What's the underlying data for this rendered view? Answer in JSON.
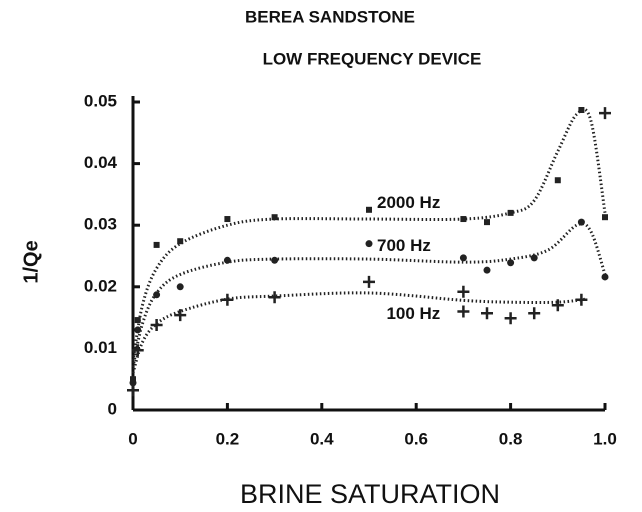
{
  "chart_data": {
    "type": "scatter",
    "title": "BEREA SANDSTONE",
    "subtitle": "LOW FREQUENCY DEVICE",
    "xlabel": "BRINE SATURATION",
    "ylabel": "1/Qe",
    "xlim": [
      0,
      1
    ],
    "ylim": [
      0,
      0.05
    ],
    "xticks": [
      0,
      0.2,
      0.4,
      0.6,
      0.8,
      {
        "value": 1,
        "label": "1.0"
      }
    ],
    "yticks": [
      0,
      0.01,
      0.02,
      0.03,
      0.04,
      0.05
    ],
    "series": [
      {
        "name": "2000 Hz",
        "marker": "square",
        "color": "#222",
        "x": [
          0,
          0.01,
          0.05,
          0.1,
          0.2,
          0.3,
          0.5,
          0.7,
          0.75,
          0.8,
          0.9,
          0.95,
          1.0
        ],
        "values": [
          0.005,
          0.0146,
          0.0268,
          0.0274,
          0.031,
          0.0313,
          0.0325,
          0.031,
          0.0305,
          0.032,
          0.0373,
          0.0487,
          0.0313
        ],
        "fit": {
          "x": [
            0,
            0.02,
            0.05,
            0.1,
            0.2,
            0.3,
            0.5,
            0.7,
            0.8,
            0.85,
            0.9,
            0.94,
            0.97,
            1.0
          ],
          "values": [
            0.008,
            0.017,
            0.023,
            0.027,
            0.03,
            0.031,
            0.031,
            0.031,
            0.032,
            0.034,
            0.042,
            0.048,
            0.047,
            0.032
          ]
        }
      },
      {
        "name": "700 Hz",
        "marker": "circle",
        "color": "#222",
        "x": [
          0,
          0.01,
          0.05,
          0.1,
          0.2,
          0.3,
          0.5,
          0.7,
          0.75,
          0.8,
          0.85,
          0.95,
          1.0
        ],
        "values": [
          0.0044,
          0.013,
          0.0187,
          0.02,
          0.0243,
          0.0243,
          0.027,
          0.0247,
          0.0227,
          0.0239,
          0.0247,
          0.0305,
          0.0216
        ],
        "fit": {
          "x": [
            0,
            0.02,
            0.05,
            0.1,
            0.2,
            0.3,
            0.5,
            0.7,
            0.8,
            0.88,
            0.94,
            0.97,
            1.0
          ],
          "values": [
            0.007,
            0.014,
            0.019,
            0.022,
            0.024,
            0.0245,
            0.0245,
            0.024,
            0.0245,
            0.026,
            0.03,
            0.029,
            0.022
          ]
        }
      },
      {
        "name": "100 Hz",
        "marker": "plus",
        "color": "#222",
        "x": [
          0,
          0.01,
          0.05,
          0.1,
          0.2,
          0.3,
          0.5,
          0.7,
          0.7,
          0.75,
          0.8,
          0.85,
          0.9,
          0.95,
          1.0
        ],
        "values": [
          0.0032,
          0.0097,
          0.0138,
          0.0154,
          0.0179,
          0.0183,
          0.0208,
          0.0192,
          0.016,
          0.0157,
          0.0149,
          0.0157,
          0.017,
          0.0179,
          0.0482
        ],
        "fit": {
          "x": [
            0,
            0.02,
            0.05,
            0.1,
            0.2,
            0.3,
            0.5,
            0.7,
            0.8,
            0.9,
            0.96
          ],
          "values": [
            0.006,
            0.011,
            0.014,
            0.016,
            0.018,
            0.0185,
            0.019,
            0.0178,
            0.0175,
            0.0175,
            0.018
          ]
        }
      }
    ]
  }
}
